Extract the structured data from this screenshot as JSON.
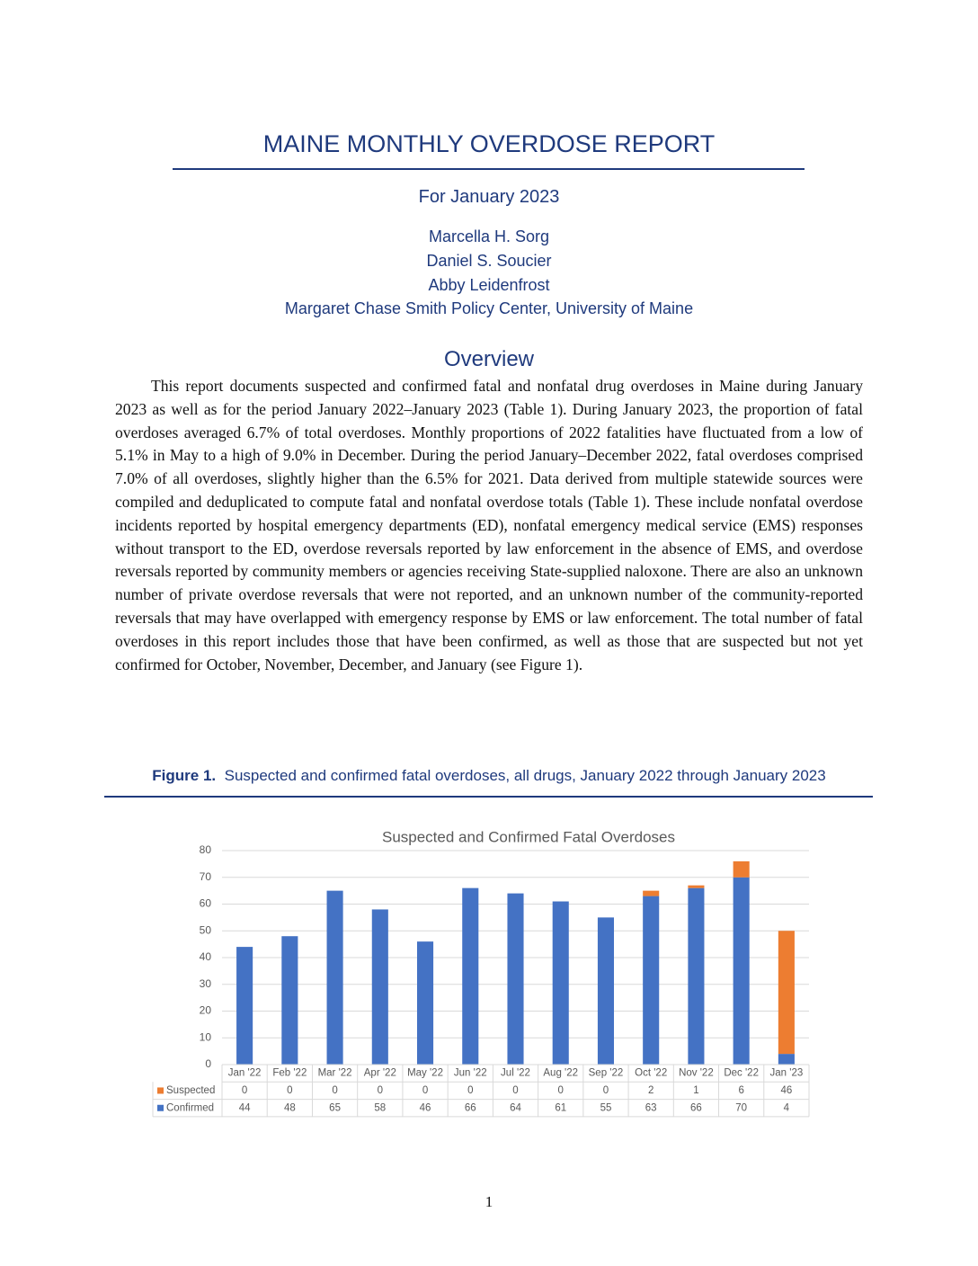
{
  "header": {
    "title": "MAINE MONTHLY OVERDOSE REPORT",
    "subtitle": "For January 2023",
    "authors": [
      "Marcella H. Sorg",
      "Daniel S. Soucier",
      "Abby Leidenfrost"
    ],
    "affiliation": "Margaret Chase Smith Policy Center, University of Maine"
  },
  "overview": {
    "heading": "Overview",
    "paragraph": "This report documents suspected and confirmed fatal and nonfatal drug overdoses in Maine during January 2023 as well as for the period January 2022–January 2023 (Table 1). During January 2023, the proportion of fatal overdoses averaged 6.7% of total overdoses. Monthly proportions of 2022 fatalities have fluctuated from a low of 5.1% in May to a high of 9.0% in December. During the period January–December 2022, fatal overdoses comprised 7.0% of all overdoses, slightly higher than the 6.5% for 2021. Data derived from multiple statewide sources were compiled and deduplicated to compute fatal and nonfatal overdose totals (Table 1). These include nonfatal overdose incidents reported by hospital emergency departments (ED), nonfatal emergency medical service (EMS) responses without transport to the ED, overdose reversals reported by law enforcement in the absence of EMS, and overdose reversals reported by community members or agencies receiving State-supplied naloxone. There are also an unknown number of private overdose reversals that were not reported, and an unknown number of the community-reported reversals that may have overlapped with emergency response by EMS or law enforcement. The total number of fatal overdoses in this report includes those that have been confirmed, as well as those that are suspected but not yet confirmed for October, November, December, and January (see Figure 1)."
  },
  "figure": {
    "label": "Figure 1.",
    "caption": "Suspected and confirmed fatal overdoses, all drugs, January 2022 through January 2023"
  },
  "chart_data": {
    "type": "bar",
    "stacked": true,
    "title": "Suspected and Confirmed Fatal Overdoses",
    "categories": [
      "Jan '22",
      "Feb '22",
      "Mar '22",
      "Apr '22",
      "May '22",
      "Jun '22",
      "Jul '22",
      "Aug '22",
      "Sep '22",
      "Oct '22",
      "Nov '22",
      "Dec '22",
      "Jan '23"
    ],
    "series": [
      {
        "name": "Suspected",
        "color": "#ed7d31",
        "values": [
          0,
          0,
          0,
          0,
          0,
          0,
          0,
          0,
          0,
          2,
          1,
          6,
          46
        ]
      },
      {
        "name": "Confirmed",
        "color": "#4472c4",
        "values": [
          44,
          48,
          65,
          58,
          46,
          66,
          64,
          61,
          55,
          63,
          66,
          70,
          4
        ]
      }
    ],
    "ylim": [
      0,
      80
    ],
    "yticks": [
      0,
      10,
      20,
      30,
      40,
      50,
      60,
      70,
      80
    ],
    "grid": true
  },
  "page_number": "1"
}
